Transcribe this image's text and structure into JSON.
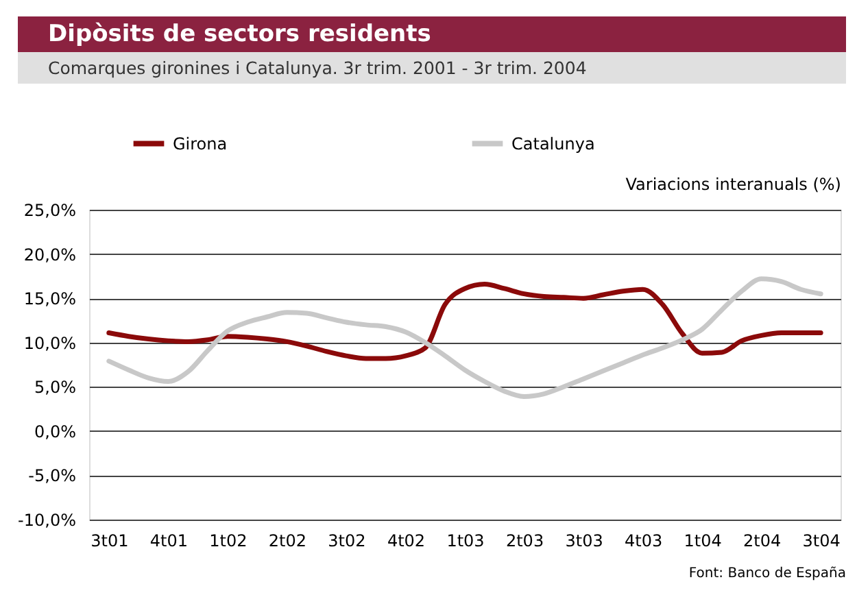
{
  "chart_data": {
    "type": "line",
    "title": "Dipòsits de sectors residents",
    "subtitle": "Comarques gironines i Catalunya. 3r trim. 2001 - 3r trim. 2004",
    "ylabel": "Variacions interanuals (%)",
    "categories": [
      "3t01",
      null,
      null,
      "4t01",
      null,
      null,
      "1t02",
      null,
      null,
      "2t02",
      null,
      null,
      "3t02",
      null,
      null,
      "4t02",
      null,
      null,
      "1t03",
      null,
      null,
      "2t03",
      null,
      null,
      "3t03",
      null,
      null,
      "4t03",
      null,
      null,
      "1t04",
      null,
      null,
      "2t04",
      null,
      null,
      "3t04"
    ],
    "series": [
      {
        "name": "Girona",
        "color": "#8b0a0a",
        "values": [
          11.1,
          10.7,
          10.4,
          10.2,
          10.1,
          10.3,
          10.7,
          10.6,
          10.4,
          10.1,
          9.6,
          9.0,
          8.5,
          8.2,
          8.2,
          8.5,
          9.4,
          14.3,
          16.1,
          16.6,
          16.1,
          15.5,
          15.2,
          15.1,
          15.0,
          15.4,
          15.8,
          16.0,
          14.3,
          11.0,
          8.8,
          8.9,
          10.2,
          10.8,
          11.1,
          11.1,
          11.1
        ]
      },
      {
        "name": "Catalunya",
        "color": "#c8c8c8",
        "values": [
          7.9,
          6.9,
          6.0,
          5.6,
          6.7,
          9.1,
          11.3,
          12.3,
          12.9,
          13.4,
          13.3,
          12.8,
          12.3,
          12.0,
          11.8,
          11.2,
          10.0,
          8.5,
          6.9,
          5.6,
          4.5,
          3.9,
          4.2,
          5.0,
          5.9,
          6.8,
          7.7,
          8.6,
          9.4,
          10.3,
          11.5,
          13.7,
          15.8,
          17.2,
          16.9,
          16.0,
          15.5
        ]
      }
    ],
    "ylim": [
      -10,
      25
    ],
    "yticks": [
      {
        "value": -10,
        "label": "-10,0%"
      },
      {
        "value": -5,
        "label": "-5,0%"
      },
      {
        "value": 0,
        "label": "0,0%"
      },
      {
        "value": 5,
        "label": "5,0%"
      },
      {
        "value": 10,
        "label": "10,0%"
      },
      {
        "value": 15,
        "label": "15,0%"
      },
      {
        "value": 20,
        "label": "20,0%"
      },
      {
        "value": 25,
        "label": "25,0%"
      }
    ],
    "grid": "y",
    "legend": "top",
    "line_style": "solid",
    "marker": "none",
    "annotations": [
      "Font: Banco de España"
    ]
  }
}
